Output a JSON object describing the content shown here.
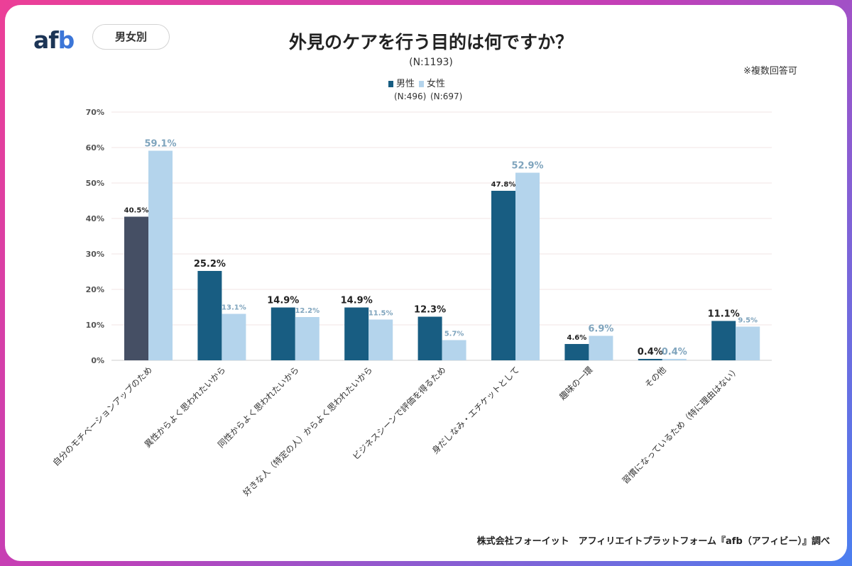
{
  "logo": {
    "text_a": "af",
    "text_b": "b"
  },
  "badge": "男女別",
  "title": "外見のケアを行う目的は何ですか？",
  "subtitle": "(N:1193)",
  "note": "※複数回答可",
  "legend": [
    {
      "label": "男性",
      "n": "(N:496)"
    },
    {
      "label": "女性",
      "n": "(N:697)"
    }
  ],
  "colors": {
    "male": "#185d82",
    "male_highlight": "#454f64",
    "female": "#b4d4ec",
    "female_label": "#7fa4bd",
    "grid": "#f0e4e4"
  },
  "chart_data": {
    "type": "bar",
    "categories": [
      "自分のモチベーションアップのため",
      "異性からよく思われたいから",
      "同性からよく思われたいから",
      "好きな人（特定の人）からよく思われたいから",
      "ビジネスシーンで評価を得るため",
      "身だしなみ・エチケットとして",
      "趣味の一環",
      "その他",
      "習慣になっているため（特に理由はない）"
    ],
    "series": [
      {
        "name": "男性",
        "values": [
          40.5,
          25.2,
          14.9,
          14.9,
          12.3,
          47.8,
          4.6,
          0.4,
          11.1
        ]
      },
      {
        "name": "女性",
        "values": [
          59.1,
          13.1,
          12.2,
          11.5,
          5.7,
          52.9,
          6.9,
          0.4,
          9.5
        ]
      }
    ],
    "y_ticks": [
      "0%",
      "10%",
      "20%",
      "30%",
      "40%",
      "50%",
      "60%",
      "70%"
    ],
    "ylim": [
      0,
      70
    ],
    "data_labels": [
      [
        "40.5%",
        "59.1%"
      ],
      [
        "25.2%",
        "13.1%"
      ],
      [
        "14.9%",
        "12.2%"
      ],
      [
        "14.9%",
        "11.5%"
      ],
      [
        "12.3%",
        "5.7%"
      ],
      [
        "47.8%",
        "52.9%"
      ],
      [
        "4.6%",
        "6.9%"
      ],
      [
        "0.4%",
        "0.4%"
      ],
      [
        "11.1%",
        "9.5%"
      ]
    ],
    "label_emphasis": [
      [
        "small",
        "large"
      ],
      [
        "large",
        "small"
      ],
      [
        "large",
        "small"
      ],
      [
        "large",
        "small"
      ],
      [
        "large",
        "small"
      ],
      [
        "small",
        "large"
      ],
      [
        "small",
        "large"
      ],
      [
        "large",
        "large"
      ],
      [
        "large",
        "small"
      ]
    ],
    "grid": true,
    "legend_position": "top-center"
  },
  "footer": "株式会社フォーイット　アフィリエイトプラットフォーム『afb（アフィビー）』調べ"
}
